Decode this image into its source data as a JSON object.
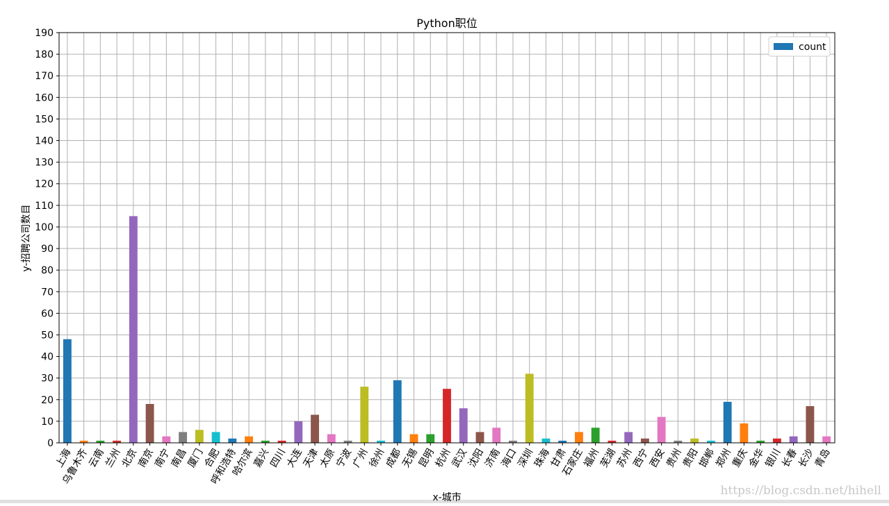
{
  "chart_data": {
    "type": "bar",
    "title": "Python职位",
    "xlabel": "x-城市",
    "ylabel": "y-招聘公司数目",
    "categories": [
      "上海",
      "乌鲁木齐",
      "云南",
      "兰州",
      "北京",
      "南京",
      "南宁",
      "南昌",
      "厦门",
      "合肥",
      "呼和浩特",
      "哈尔滨",
      "嘉兴",
      "四川",
      "大连",
      "天津",
      "太原",
      "宁波",
      "广州",
      "徐州",
      "成都",
      "无锡",
      "昆明",
      "杭州",
      "武汉",
      "沈阳",
      "济南",
      "海口",
      "深圳",
      "珠海",
      "甘肃",
      "石家庄",
      "福州",
      "芜湖",
      "苏州",
      "西宁",
      "西安",
      "贵州",
      "贵阳",
      "邯郸",
      "郑州",
      "重庆",
      "金华",
      "银川",
      "长春",
      "长沙",
      "青岛"
    ],
    "series": [
      {
        "name": "count",
        "color": "#1f77b4",
        "values": [
          48,
          1,
          1,
          1,
          105,
          18,
          3,
          5,
          6,
          5,
          2,
          3,
          1,
          1,
          10,
          13,
          4,
          1,
          26,
          1,
          29,
          4,
          4,
          25,
          16,
          5,
          7,
          1,
          32,
          2,
          1,
          5,
          7,
          1,
          5,
          2,
          12,
          1,
          2,
          1,
          19,
          9,
          1,
          2,
          3,
          17,
          3
        ]
      }
    ],
    "bar_colors": [
      "#1f77b4",
      "#ff7f0e",
      "#2ca02c",
      "#d62728",
      "#9467bd",
      "#8c564b",
      "#e377c2",
      "#7f7f7f",
      "#bcbd22",
      "#17becf"
    ],
    "ylim": [
      0,
      190
    ],
    "yticks": [
      0,
      10,
      20,
      30,
      40,
      50,
      60,
      70,
      80,
      90,
      100,
      110,
      120,
      130,
      140,
      150,
      160,
      170,
      180,
      190
    ],
    "grid": true,
    "legend": "upper right",
    "watermark": "https://blog.csdn.net/hihell"
  }
}
